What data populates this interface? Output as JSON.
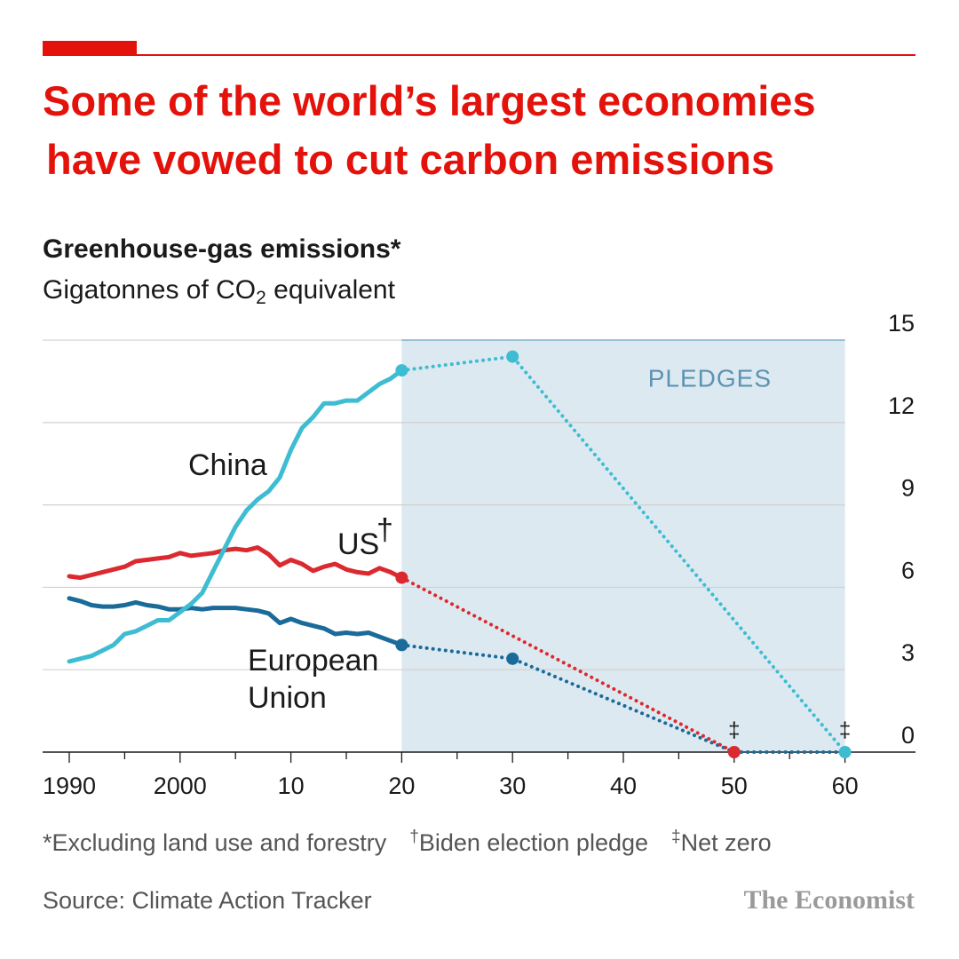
{
  "header": {
    "title_line1": "Some of the world’s largest economies",
    "title_line2": "have vowed to cut carbon emissions",
    "subtitle": "Greenhouse-gas emissions*",
    "unit_prefix": "Gigatonnes of CO",
    "unit_sub": "2",
    "unit_suffix": " equivalent"
  },
  "footer": {
    "note1": "*Excluding land use and forestry",
    "note2_mark": "†",
    "note2_text": "Biden election pledge",
    "note3_mark": "‡",
    "note3_text": "Net zero",
    "source": "Source: Climate Action Tracker",
    "brand": "The Economist"
  },
  "colors": {
    "accent": "#e3120b",
    "china": "#3ebcd2",
    "us": "#db2a2f",
    "eu": "#1a6a9a",
    "pledges_band": "#dde9f0",
    "pledges_text": "#5b93b3"
  },
  "chart_data": {
    "type": "line",
    "title": "Some of the world’s largest economies have vowed to cut carbon emissions",
    "subtitle": "Greenhouse-gas emissions*",
    "ylabel": "Gigatonnes of CO2 equivalent",
    "xlim": [
      1990,
      2060
    ],
    "ylim": [
      0,
      15
    ],
    "x_ticks": [
      {
        "value": 1990,
        "label": "1990"
      },
      {
        "value": 2000,
        "label": "2000"
      },
      {
        "value": 2010,
        "label": "10"
      },
      {
        "value": 2020,
        "label": "20"
      },
      {
        "value": 2030,
        "label": "30"
      },
      {
        "value": 2040,
        "label": "40"
      },
      {
        "value": 2050,
        "label": "50"
      },
      {
        "value": 2060,
        "label": "60"
      }
    ],
    "y_ticks": [
      0,
      3,
      6,
      9,
      12,
      15
    ],
    "grid": true,
    "y_axis_side": "right",
    "shaded_region": {
      "x_start": 2020,
      "x_end": 2060,
      "label": "PLEDGES"
    },
    "series": [
      {
        "name": "China",
        "key": "china",
        "historical": {
          "x": [
            1990,
            1991,
            1992,
            1993,
            1994,
            1995,
            1996,
            1997,
            1998,
            1999,
            2000,
            2001,
            2002,
            2003,
            2004,
            2005,
            2006,
            2007,
            2008,
            2009,
            2010,
            2011,
            2012,
            2013,
            2014,
            2015,
            2016,
            2017,
            2018,
            2019,
            2020
          ],
          "y": [
            3.3,
            3.4,
            3.5,
            3.7,
            3.9,
            4.3,
            4.4,
            4.6,
            4.8,
            4.8,
            5.1,
            5.4,
            5.8,
            6.6,
            7.4,
            8.2,
            8.8,
            9.2,
            9.5,
            10.0,
            11.0,
            11.8,
            12.2,
            12.7,
            12.7,
            12.8,
            12.8,
            13.1,
            13.4,
            13.6,
            13.9
          ]
        },
        "pledge": {
          "x": [
            2020,
            2030,
            2060
          ],
          "y": [
            13.9,
            14.4,
            0
          ]
        }
      },
      {
        "name": "US",
        "label_mark": "†",
        "key": "us",
        "historical": {
          "x": [
            1990,
            1991,
            1992,
            1993,
            1994,
            1995,
            1996,
            1997,
            1998,
            1999,
            2000,
            2001,
            2002,
            2003,
            2004,
            2005,
            2006,
            2007,
            2008,
            2009,
            2010,
            2011,
            2012,
            2013,
            2014,
            2015,
            2016,
            2017,
            2018,
            2019,
            2020
          ],
          "y": [
            6.4,
            6.35,
            6.45,
            6.55,
            6.65,
            6.75,
            6.95,
            7.0,
            7.05,
            7.1,
            7.25,
            7.15,
            7.2,
            7.25,
            7.35,
            7.4,
            7.35,
            7.45,
            7.2,
            6.8,
            7.0,
            6.85,
            6.6,
            6.75,
            6.85,
            6.65,
            6.55,
            6.5,
            6.7,
            6.55,
            6.35
          ]
        },
        "pledge": {
          "x": [
            2020,
            2050
          ],
          "y": [
            6.35,
            0
          ]
        }
      },
      {
        "name": "European Union",
        "key": "eu",
        "historical": {
          "x": [
            1990,
            1991,
            1992,
            1993,
            1994,
            1995,
            1996,
            1997,
            1998,
            1999,
            2000,
            2001,
            2002,
            2003,
            2004,
            2005,
            2006,
            2007,
            2008,
            2009,
            2010,
            2011,
            2012,
            2013,
            2014,
            2015,
            2016,
            2017,
            2018,
            2019,
            2020
          ],
          "y": [
            5.6,
            5.5,
            5.35,
            5.3,
            5.3,
            5.35,
            5.45,
            5.35,
            5.3,
            5.2,
            5.2,
            5.25,
            5.2,
            5.25,
            5.25,
            5.25,
            5.2,
            5.15,
            5.05,
            4.7,
            4.85,
            4.7,
            4.6,
            4.5,
            4.3,
            4.35,
            4.3,
            4.35,
            4.2,
            4.05,
            3.9
          ]
        },
        "pledge": {
          "x": [
            2020,
            2030,
            2050,
            2060
          ],
          "y": [
            3.9,
            3.4,
            0,
            0
          ]
        }
      }
    ],
    "annotations": [
      {
        "text": "‡",
        "x": 2050
      },
      {
        "text": "‡",
        "x": 2060
      }
    ]
  }
}
